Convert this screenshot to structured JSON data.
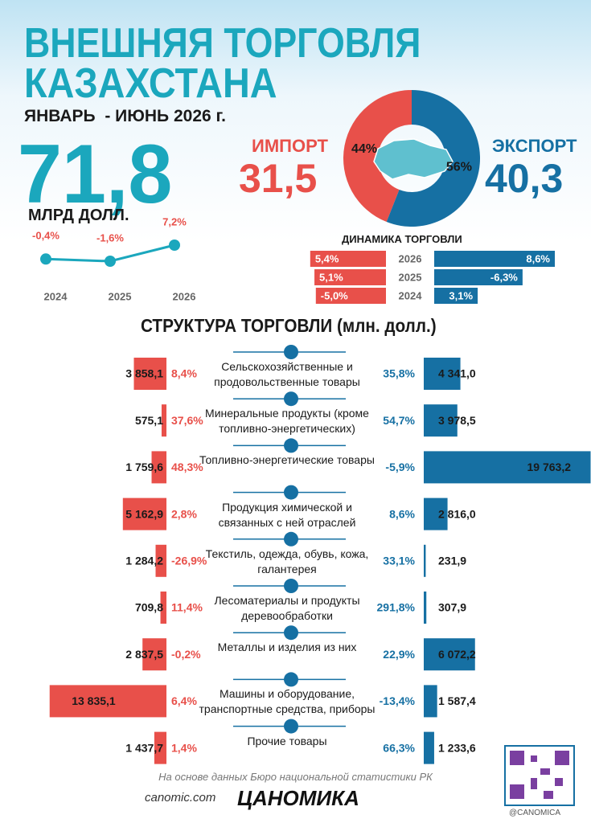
{
  "header": {
    "title_line1": "ВНЕШНЯЯ ТОРГОВЛЯ",
    "title_line2": "КАЗАХСТАНА",
    "period": "ЯНВАРЬ  - ИЮНЬ 2026 г.",
    "total": "71,8",
    "total_unit": "МЛРД ДОЛЛ.",
    "import_label": "ИМПОРТ",
    "import_value": "31,5",
    "export_label": "ЭКСПОРТ",
    "export_value": "40,3"
  },
  "chart_data": [
    {
      "type": "pie",
      "values": [
        44,
        56
      ],
      "value_labels": [
        "44%",
        "56%"
      ],
      "colors": [
        "#e8504a",
        "#1670a3"
      ]
    },
    {
      "type": "line",
      "categories": [
        "2024",
        "2025",
        "2026"
      ],
      "values": [
        -0.4,
        -1.6,
        7.2
      ],
      "value_labels": [
        "-0,4%",
        "-1,6%",
        "7,2%"
      ],
      "color": "#1ba7bd"
    },
    {
      "type": "bar",
      "title": "ДИНАМИКА ТОРГОВЛИ",
      "categories": [
        "2026",
        "2025",
        "2024"
      ],
      "series": [
        {
          "color": "#e8504a",
          "values": [
            5.4,
            5.1,
            -5.0
          ],
          "value_labels": [
            "5,4%",
            "5,1%",
            "-5,0%"
          ]
        },
        {
          "color": "#1670a3",
          "values": [
            8.6,
            -6.3,
            3.1
          ],
          "value_labels": [
            "8,6%",
            "-6,3%",
            "3,1%"
          ]
        }
      ]
    },
    {
      "type": "bar",
      "title": "СТРУКТУРА ТОРГОВЛИ (млн. долл.)",
      "categories": [
        "Сельскохозяйственные и продовольственные товары",
        "Минеральные продукты (кроме топливно-энергетических)",
        "Топливно-энергетические товары",
        "Продукция химической и связанных с ней отраслей",
        "Текстиль, одежда, обувь, кожа, галантерея",
        "Лесоматериалы и продукты деревообработки",
        "Металлы и изделия из них",
        "Машины и оборудование, транспортные средства, приборы",
        "Прочие товары"
      ],
      "series": [
        {
          "color": "#e8504a",
          "values": [
            3858.1,
            575.1,
            1759.6,
            5162.9,
            1284.2,
            709.8,
            2837.5,
            13835.1,
            1437.7
          ],
          "value_labels": [
            "3 858,1",
            "575,1",
            "1 759,6",
            "5 162,9",
            "1 284,2",
            "709,8",
            "2 837,5",
            "13 835,1",
            "1 437,7"
          ],
          "change_labels": [
            "8,4%",
            "37,6%",
            "48,3%",
            "2,8%",
            "-26,9%",
            "11,4%",
            "-0,2%",
            "6,4%",
            "1,4%"
          ]
        },
        {
          "color": "#1670a3",
          "values": [
            4341.0,
            3978.5,
            19763.2,
            2816.0,
            231.9,
            307.9,
            6072.2,
            1587.4,
            1233.6
          ],
          "value_labels": [
            "4 341,0",
            "3 978,5",
            "19 763,2",
            "2 816,0",
            "231,9",
            "307,9",
            "6 072,2",
            "1 587,4",
            "1 233,6"
          ],
          "change_labels": [
            "35,8%",
            "54,7%",
            "-5,9%",
            "8,6%",
            "33,1%",
            "291,8%",
            "22,9%",
            "-13,4%",
            "66,3%"
          ]
        }
      ]
    }
  ],
  "footer": {
    "source": "На основе данных Бюро национальной статистики РК",
    "site": "canomic.com",
    "logo": "ЦАНОМИКА",
    "handle": "@CANOMICA"
  }
}
